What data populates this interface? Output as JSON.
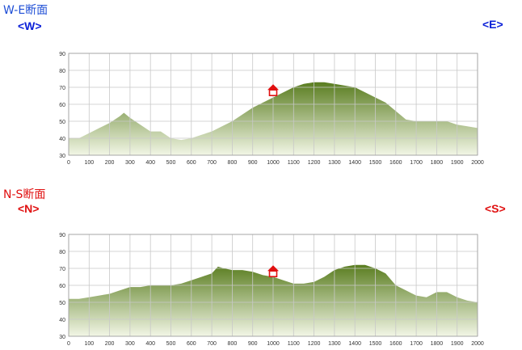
{
  "colors": {
    "we_title": "#1f4fd6",
    "we_direction": "#0a1fd8",
    "ns_title": "#e01010",
    "ns_direction": "#e01010",
    "marker": "#e01010",
    "fill_top": "#5a7d20",
    "fill_bottom": "#f2f6e6",
    "grid": "#c8c8c8"
  },
  "we": {
    "title": "W-E断面",
    "left_label": "<W>",
    "right_label": "<E>"
  },
  "ns": {
    "title": "N-S断面",
    "left_label": "<N>",
    "right_label": "<S>"
  },
  "chart_data": [
    {
      "type": "area",
      "title": "W-E断面",
      "xlabel": "",
      "ylabel": "",
      "xlim": [
        0,
        2000
      ],
      "ylim": [
        30,
        90
      ],
      "x_ticks": [
        0,
        100,
        200,
        300,
        400,
        500,
        600,
        700,
        800,
        900,
        1000,
        1100,
        1200,
        1300,
        1400,
        1500,
        1600,
        1700,
        1800,
        1900,
        2000
      ],
      "y_ticks": [
        30,
        40,
        50,
        60,
        70,
        80,
        90
      ],
      "grid": true,
      "marker": {
        "x": 1000,
        "y": 68,
        "icon": "house-icon"
      },
      "series": [
        {
          "x": [
            0,
            50,
            100,
            150,
            200,
            250,
            270,
            300,
            350,
            400,
            450,
            500,
            550,
            600,
            650,
            700,
            750,
            800,
            850,
            900,
            950,
            1000,
            1050,
            1100,
            1150,
            1200,
            1250,
            1300,
            1350,
            1400,
            1450,
            1500,
            1550,
            1600,
            1650,
            1700,
            1750,
            1800,
            1850,
            1900,
            1950,
            2000
          ],
          "values": [
            40,
            40,
            43,
            46,
            49,
            53,
            55,
            52,
            48,
            44,
            44,
            40,
            39,
            40,
            42,
            44,
            47,
            50,
            54,
            58,
            61,
            64,
            67,
            70,
            72,
            73,
            73,
            72,
            71,
            70,
            67,
            64,
            61,
            56,
            51,
            50,
            50,
            50,
            50,
            48,
            47,
            46
          ]
        }
      ]
    },
    {
      "type": "area",
      "title": "N-S断面",
      "xlabel": "",
      "ylabel": "",
      "xlim": [
        0,
        2000
      ],
      "ylim": [
        30,
        90
      ],
      "x_ticks": [
        0,
        100,
        200,
        300,
        400,
        500,
        600,
        700,
        800,
        900,
        1000,
        1100,
        1200,
        1300,
        1400,
        1500,
        1600,
        1700,
        1800,
        1900,
        2000
      ],
      "y_ticks": [
        30,
        40,
        50,
        60,
        70,
        80,
        90
      ],
      "grid": true,
      "marker": {
        "x": 1000,
        "y": 68,
        "icon": "house-icon"
      },
      "series": [
        {
          "x": [
            0,
            50,
            100,
            150,
            200,
            250,
            300,
            350,
            400,
            450,
            500,
            550,
            600,
            650,
            700,
            730,
            760,
            800,
            850,
            900,
            950,
            1000,
            1050,
            1100,
            1150,
            1200,
            1250,
            1300,
            1350,
            1400,
            1450,
            1500,
            1550,
            1600,
            1650,
            1700,
            1750,
            1800,
            1850,
            1900,
            1950,
            2000
          ],
          "values": [
            52,
            52,
            53,
            54,
            55,
            57,
            59,
            59,
            60,
            60,
            60,
            61,
            63,
            65,
            67,
            71,
            70,
            69,
            69,
            68,
            66,
            65,
            63,
            61,
            61,
            62,
            65,
            69,
            71,
            72,
            72,
            70,
            67,
            60,
            57,
            54,
            53,
            56,
            56,
            53,
            51,
            50
          ]
        }
      ]
    }
  ]
}
